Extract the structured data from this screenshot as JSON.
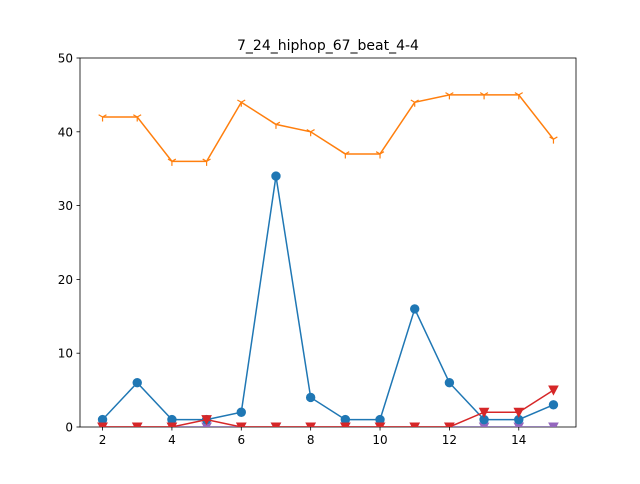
{
  "chart_data": {
    "type": "line",
    "title": "7_24_hiphop_67_beat_4-4",
    "xlabel": "",
    "ylabel": "",
    "xlim": [
      1.35,
      15.65
    ],
    "ylim": [
      0,
      50
    ],
    "x_ticks": [
      2,
      4,
      6,
      8,
      10,
      12,
      14
    ],
    "y_ticks": [
      0,
      10,
      20,
      30,
      40,
      50
    ],
    "grid": false,
    "x": [
      2,
      3,
      4,
      5,
      6,
      7,
      8,
      9,
      10,
      11,
      12,
      13,
      14,
      15
    ],
    "series": [
      {
        "color": "#1f77b4",
        "marker": "circle",
        "values": [
          1,
          6,
          1,
          1,
          2,
          34,
          4,
          1,
          1,
          16,
          6,
          1,
          1,
          3
        ]
      },
      {
        "color": "#ff7f0e",
        "marker": "tri-down",
        "values": [
          42,
          42,
          36,
          36,
          44,
          41,
          40,
          37,
          37,
          44,
          45,
          45,
          45,
          39
        ]
      },
      {
        "color": "#2ca02c",
        "marker": "tri-up",
        "values": [
          0,
          0,
          0,
          0,
          0,
          0,
          0,
          0,
          0,
          0,
          0,
          0,
          0,
          0
        ]
      },
      {
        "color": "#d62728",
        "marker": "triangle-down",
        "values": [
          0,
          0,
          0,
          1,
          0,
          0,
          0,
          0,
          0,
          0,
          0,
          2,
          2,
          5
        ]
      },
      {
        "color": "#9467bd",
        "marker": "triangle-down",
        "values": [
          0,
          0,
          0,
          0,
          0,
          0,
          0,
          0,
          0,
          0,
          0,
          0,
          0,
          0
        ]
      }
    ]
  }
}
